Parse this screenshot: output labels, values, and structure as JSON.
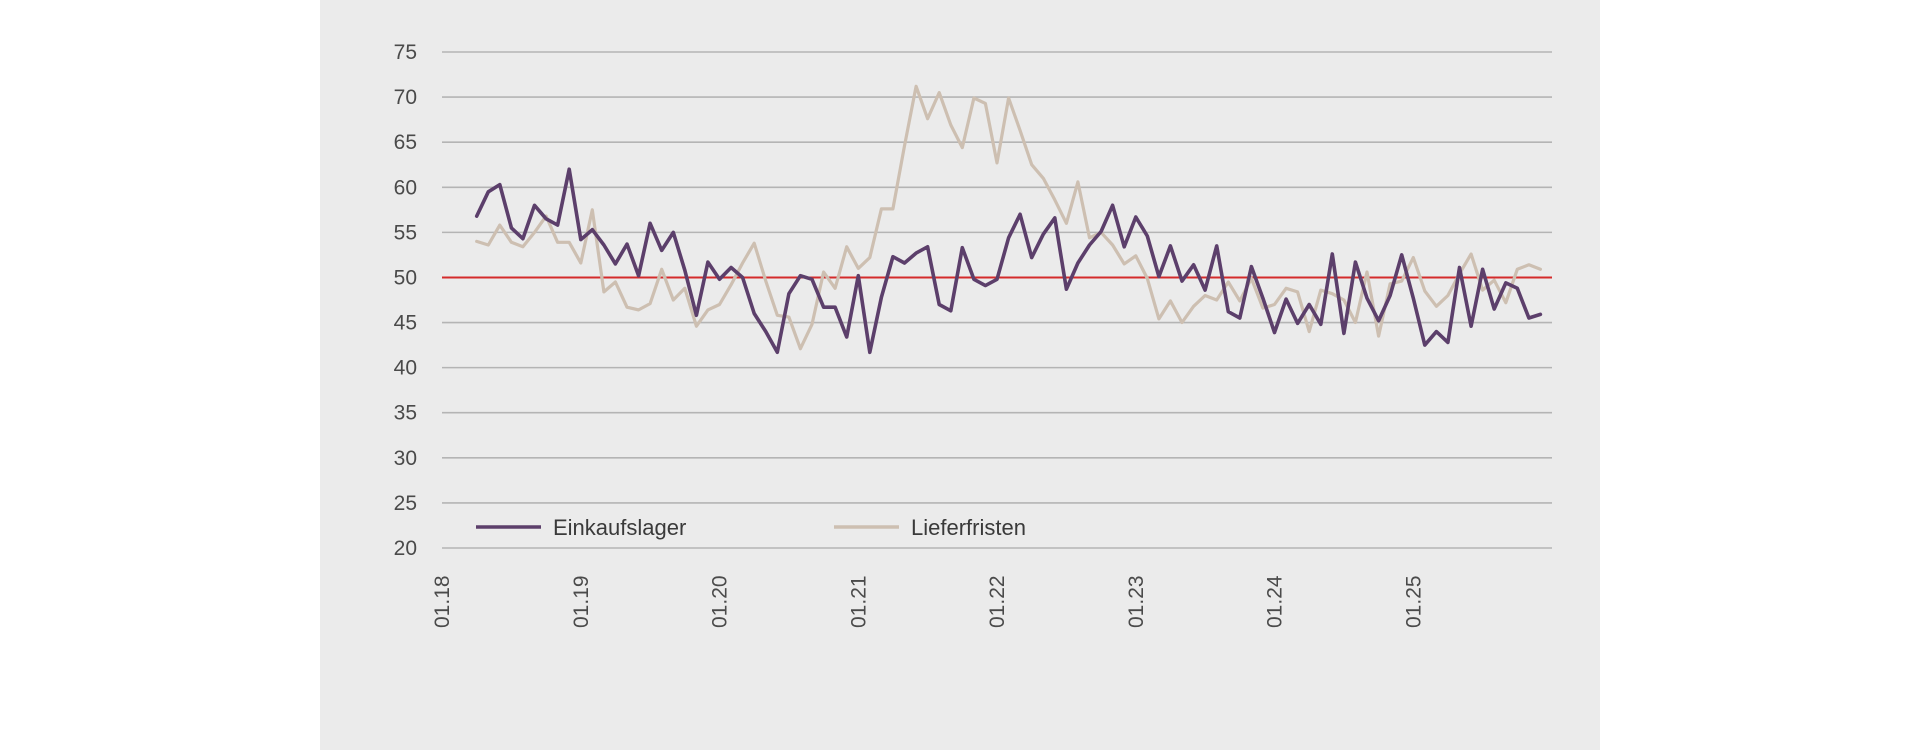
{
  "chart_data": {
    "type": "line",
    "title": "",
    "xlabel": "",
    "ylabel": "",
    "ylim": [
      20,
      75
    ],
    "y_ticks": [
      "75",
      "70",
      "65",
      "60",
      "55",
      "50",
      "45",
      "40",
      "35",
      "30",
      "25",
      "20"
    ],
    "x_ticks": [
      "01.18",
      "01.19",
      "01.20",
      "01.21",
      "01.22",
      "01.23",
      "01.24",
      "01.25"
    ],
    "x_tick_months": [
      0,
      12,
      24,
      36,
      48,
      60,
      72,
      84
    ],
    "x_range_months": [
      0,
      96
    ],
    "grid": true,
    "legend_placement": "bottom-left",
    "reference_line": {
      "value": 50,
      "color": "#d42b2b"
    },
    "x_months": [
      3,
      4,
      5,
      6,
      7,
      8,
      9,
      10,
      11,
      12,
      13,
      14,
      15,
      16,
      17,
      18,
      19,
      20,
      21,
      22,
      23,
      24,
      25,
      26,
      27,
      28,
      29,
      30,
      31,
      32,
      33,
      34,
      35,
      36,
      37,
      38,
      39,
      40,
      41,
      42,
      43,
      44,
      45,
      46,
      47,
      48,
      49,
      50,
      51,
      52,
      53,
      54,
      55,
      56,
      57,
      58,
      59,
      60,
      61,
      62,
      63,
      64,
      65,
      66,
      67,
      68,
      69,
      70,
      71,
      72,
      73,
      74,
      75,
      76,
      77,
      78,
      79,
      80,
      81,
      82,
      83,
      84,
      85,
      86,
      87,
      88,
      89,
      90,
      91,
      92,
      93,
      94,
      95
    ],
    "series": [
      {
        "name": "Einkaufslager",
        "color": "#5c3f6b",
        "values": [
          56.8,
          59.5,
          60.3,
          55.5,
          54.3,
          58.0,
          56.5,
          55.8,
          62.0,
          54.2,
          55.3,
          53.6,
          51.5,
          53.7,
          50.2,
          56.0,
          53.0,
          55.0,
          50.8,
          45.8,
          51.7,
          49.8,
          51.1,
          50.0,
          46.0,
          44.0,
          41.7,
          48.2,
          50.2,
          49.8,
          46.7,
          46.7,
          43.4,
          50.2,
          41.7,
          47.8,
          52.3,
          51.6,
          52.7,
          53.4,
          47.0,
          46.3,
          53.3,
          49.8,
          49.1,
          49.8,
          54.4,
          57.0,
          52.2,
          54.8,
          56.6,
          48.7,
          51.6,
          53.6,
          55.1,
          58.0,
          53.4,
          56.7,
          54.6,
          50.1,
          53.5,
          49.6,
          51.4,
          48.6,
          53.5,
          46.2,
          45.5,
          51.2,
          47.7,
          43.9,
          47.6,
          44.9,
          47.0,
          44.8,
          52.6,
          43.8,
          51.7,
          47.7,
          45.2,
          48.0,
          52.5,
          47.7,
          42.5,
          44.0,
          42.8,
          51.1,
          44.6,
          50.9,
          46.5,
          49.4,
          48.8,
          45.5,
          45.9
        ]
      },
      {
        "name": "Lieferfristen",
        "color": "#cdbfb1",
        "values": [
          54.0,
          53.6,
          55.8,
          53.9,
          53.4,
          55.0,
          56.8,
          53.9,
          53.9,
          51.6,
          57.5,
          48.4,
          49.5,
          46.7,
          46.4,
          47.1,
          50.9,
          47.5,
          48.8,
          44.6,
          46.4,
          47.0,
          49.2,
          51.6,
          53.8,
          49.6,
          45.8,
          45.6,
          42.1,
          44.8,
          50.6,
          48.8,
          53.4,
          51.0,
          52.2,
          57.6,
          57.6,
          64.6,
          71.2,
          67.6,
          70.5,
          66.9,
          64.4,
          69.9,
          69.3,
          62.7,
          69.9,
          66.3,
          62.5,
          61.0,
          58.6,
          56.0,
          60.6,
          54.4,
          55.0,
          53.6,
          51.5,
          52.4,
          49.9,
          45.4,
          47.4,
          45.0,
          46.8,
          48.0,
          47.5,
          49.5,
          47.4,
          49.9,
          46.6,
          47.0,
          48.8,
          48.4,
          44.0,
          48.6,
          48.2,
          47.5,
          45.0,
          50.6,
          43.5,
          49.3,
          49.6,
          52.2,
          48.5,
          46.8,
          48.0,
          50.4,
          52.6,
          48.6,
          49.7,
          47.2,
          50.9,
          51.4,
          50.9
        ]
      }
    ]
  }
}
